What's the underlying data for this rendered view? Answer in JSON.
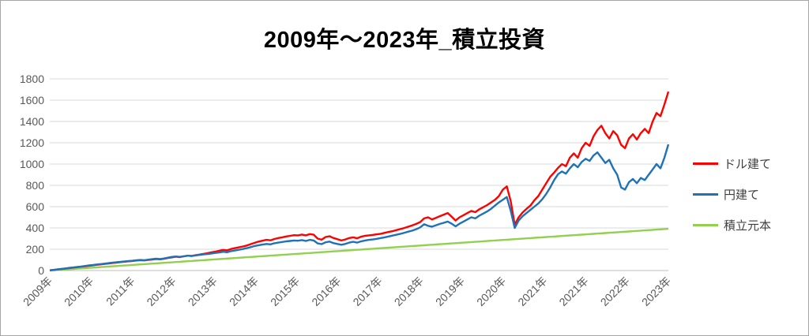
{
  "window": {
    "background": "#ffffff",
    "border_color": "#a6a6a6"
  },
  "chart_data": {
    "type": "line",
    "title": "2009年～2023年_積立投資",
    "xlabel": "",
    "ylabel": "",
    "ylim": [
      0,
      1800
    ],
    "y_ticks": [
      0,
      200,
      400,
      600,
      800,
      1000,
      1200,
      1400,
      1600,
      1800
    ],
    "x_tick_labels": [
      "2009年",
      "2010年",
      "2011年",
      "2012年",
      "2013年",
      "2014年",
      "2015年",
      "2016年",
      "2017年",
      "2018年",
      "2019年",
      "2020年",
      "2021年",
      "2021年",
      "2022年",
      "2023年"
    ],
    "grid": "horizontal",
    "gridline_color": "#d9d9d9",
    "axis_line_color": "#bfbfbf",
    "tick_label_color": "#595959",
    "legend_position": "right",
    "series": [
      {
        "name": "ドル建て",
        "color": "#ff0000",
        "values": [
          2,
          6,
          10,
          15,
          19,
          24,
          28,
          32,
          36,
          41,
          45,
          49,
          54,
          58,
          62,
          66,
          71,
          75,
          79,
          83,
          87,
          90,
          94,
          97,
          95,
          99,
          104,
          108,
          105,
          110,
          118,
          124,
          130,
          126,
          133,
          139,
          136,
          144,
          150,
          156,
          163,
          171,
          178,
          186,
          194,
          190,
          202,
          210,
          218,
          226,
          235,
          248,
          260,
          272,
          280,
          288,
          284,
          296,
          305,
          312,
          320,
          326,
          332,
          330,
          338,
          330,
          342,
          336,
          300,
          290,
          315,
          322,
          305,
          295,
          282,
          292,
          305,
          312,
          303,
          318,
          326,
          330,
          335,
          340,
          345,
          354,
          362,
          370,
          380,
          390,
          400,
          412,
          424,
          438,
          455,
          490,
          500,
          480,
          495,
          510,
          525,
          540,
          505,
          470,
          500,
          520,
          540,
          560,
          548,
          575,
          595,
          615,
          640,
          665,
          700,
          760,
          790,
          650,
          430,
          500,
          545,
          580,
          610,
          660,
          700,
          760,
          820,
          880,
          920,
          965,
          1000,
          980,
          1060,
          1100,
          1060,
          1150,
          1200,
          1170,
          1260,
          1320,
          1360,
          1290,
          1240,
          1310,
          1270,
          1180,
          1150,
          1240,
          1280,
          1230,
          1290,
          1330,
          1290,
          1400,
          1480,
          1450,
          1560,
          1680
        ]
      },
      {
        "name": "円建て",
        "color": "#1f72b8",
        "values": [
          2,
          6,
          11,
          15,
          20,
          25,
          29,
          34,
          38,
          43,
          48,
          52,
          57,
          61,
          65,
          70,
          74,
          78,
          82,
          86,
          89,
          92,
          96,
          99,
          97,
          102,
          107,
          111,
          108,
          113,
          121,
          128,
          132,
          128,
          134,
          139,
          136,
          142,
          147,
          151,
          155,
          160,
          165,
          170,
          176,
          172,
          182,
          188,
          195,
          202,
          210,
          220,
          230,
          238,
          244,
          250,
          246,
          256,
          262,
          268,
          274,
          278,
          282,
          280,
          286,
          278,
          288,
          282,
          255,
          248,
          265,
          272,
          258,
          250,
          242,
          250,
          262,
          270,
          262,
          274,
          282,
          288,
          292,
          298,
          305,
          312,
          320,
          328,
          336,
          345,
          355,
          365,
          375,
          388,
          405,
          435,
          420,
          412,
          425,
          438,
          448,
          460,
          440,
          415,
          440,
          460,
          480,
          500,
          490,
          515,
          535,
          555,
          580,
          610,
          640,
          665,
          690,
          560,
          400,
          470,
          510,
          540,
          570,
          600,
          630,
          670,
          720,
          780,
          850,
          905,
          930,
          910,
          960,
          1000,
          970,
          1020,
          1050,
          1030,
          1080,
          1110,
          1060,
          1010,
          1040,
          960,
          900,
          780,
          760,
          830,
          860,
          820,
          870,
          850,
          900,
          950,
          1000,
          960,
          1060,
          1185
        ]
      },
      {
        "name": "積立元本",
        "color": "#92d050",
        "linear": {
          "start": 0,
          "end": 392
        }
      }
    ]
  }
}
